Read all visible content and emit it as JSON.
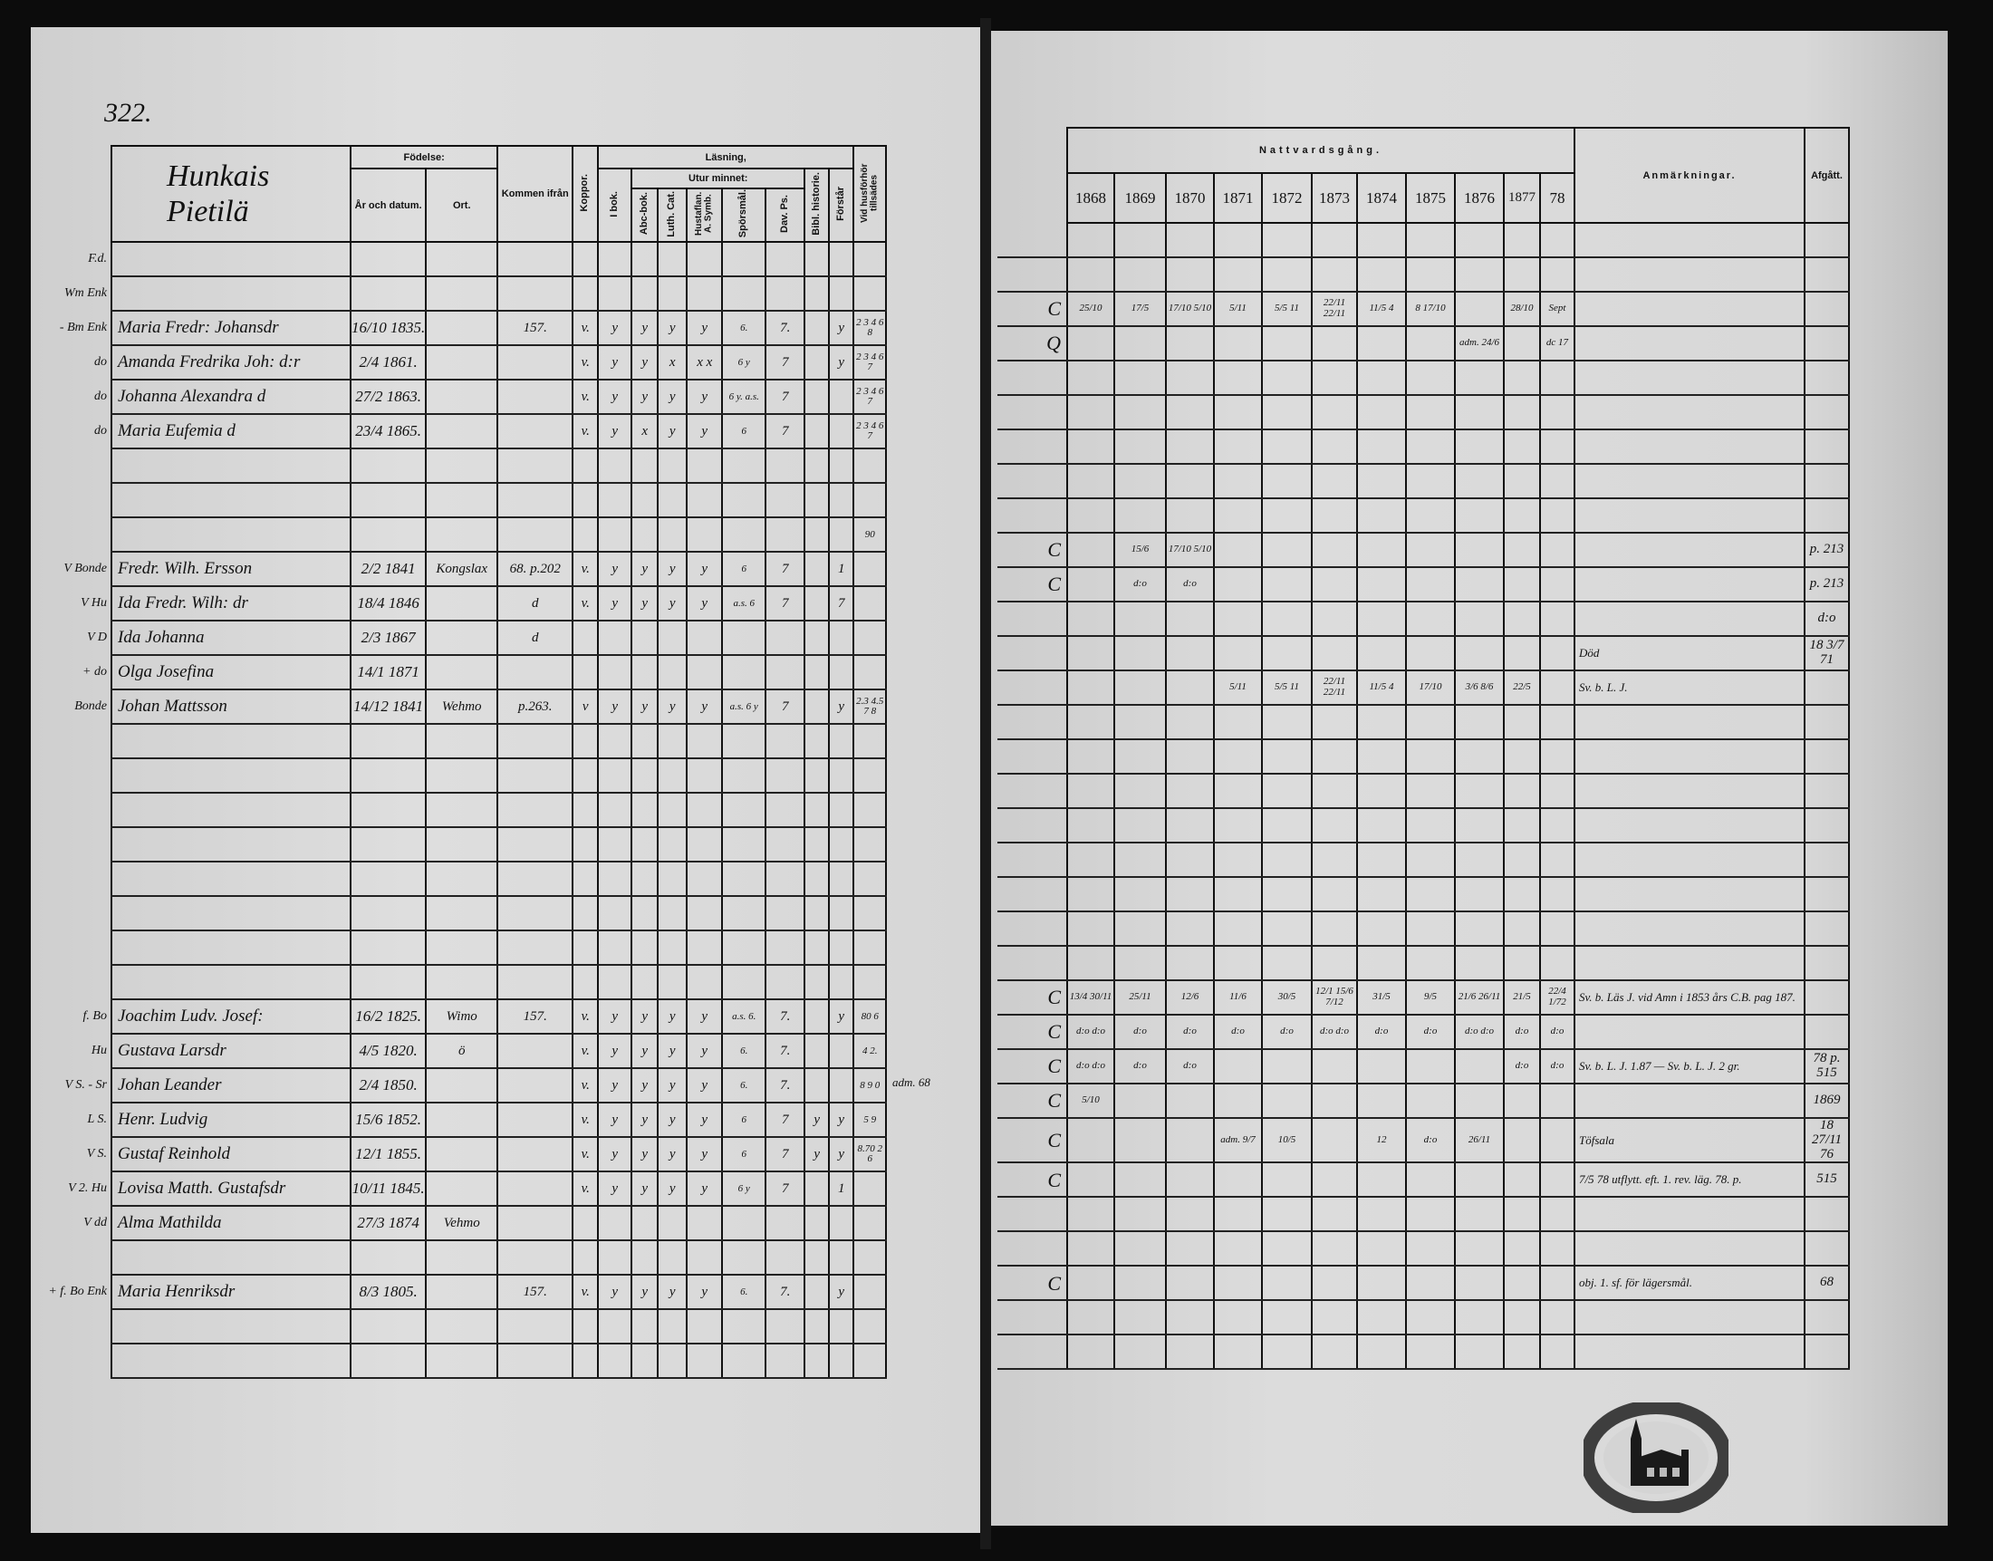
{
  "left_page": {
    "page_number": "322.",
    "village_title": [
      "Hunkais",
      "Pietilä"
    ],
    "headers": {
      "birth": "Födelse:",
      "year_date": "År och datum.",
      "place": "Ort.",
      "came_from": "Kommen ifrån",
      "smallpox": "Koppor.",
      "reading": "Läsning,",
      "in_book": "I bok.",
      "by_heart": "Utur minnet:",
      "abc_book": "Abc-bok.",
      "luth_cat": "Luth. Cat.",
      "hustaflan": "Hustaflan. A. Symb.",
      "questions": "Spörsmål.",
      "dav_ps": "Dav. Ps.",
      "bibl_history": "Bibl. historie.",
      "understands": "Förstår",
      "communion_exam": "Vid husförhör tillsädes"
    },
    "rows": [
      {
        "prefix": "F.d."
      },
      {
        "prefix": "Wm Enk"
      },
      {
        "prefix": "- Bm Enk",
        "name": "Maria Fredr: Johansdr",
        "date": "16/10 1835.",
        "place": "",
        "from": "157.",
        "koppor": "v.",
        "ibok": "y",
        "abc": "y",
        "luth": "y",
        "hust": "y",
        "spors": "6.",
        "dav": "7.",
        "bibl": "",
        "forst": "y",
        "vid": "2 3 4 6 8"
      },
      {
        "prefix": "do",
        "name": "Amanda Fredrika Joh: d:r",
        "date": "2/4 1861.",
        "koppor": "v.",
        "ibok": "y",
        "abc": "y",
        "luth": "x",
        "hust": "x x",
        "spors": "6 y",
        "dav": "7",
        "forst": "y",
        "vid": "2 3 4 6 7"
      },
      {
        "prefix": "do",
        "name": "Johanna Alexandra d",
        "date": "27/2 1863.",
        "koppor": "v.",
        "ibok": "y",
        "abc": "y",
        "luth": "y",
        "hust": "y",
        "spors": "6 y. a.s.",
        "dav": "7",
        "vid": "2 3 4 6 7"
      },
      {
        "prefix": "do",
        "name": "Maria Eufemia d",
        "date": "23/4 1865.",
        "koppor": "v.",
        "ibok": "y",
        "abc": "x",
        "luth": "y",
        "hust": "y",
        "spors": "6",
        "dav": "7",
        "vid": "2 3 4 6 7"
      },
      {},
      {},
      {
        "vid": "90"
      },
      {
        "prefix": "V Bonde",
        "name": "Fredr. Wilh. Ersson",
        "date": "2/2 1841",
        "place": "Kongslax",
        "from": "68. p.202",
        "koppor": "v.",
        "ibok": "y",
        "abc": "y",
        "luth": "y",
        "hust": "y",
        "spors": "6",
        "dav": "7",
        "forst": "1"
      },
      {
        "prefix": "V Hu",
        "name": "Ida Fredr. Wilh: dr",
        "date": "18/4 1846",
        "from": "d",
        "koppor": "v.",
        "ibok": "y",
        "abc": "y",
        "luth": "y",
        "hust": "y",
        "spors": "a.s. 6",
        "dav": "7",
        "forst": "7"
      },
      {
        "prefix": "V D",
        "name": "Ida Johanna",
        "date": "2/3 1867",
        "from": "d"
      },
      {
        "prefix": "+ do",
        "name": "Olga Josefina",
        "date": "14/1 1871"
      },
      {
        "prefix": "Bonde",
        "name": "Johan Mattsson",
        "date": "14/12 1841",
        "place": "Wehmo",
        "from": "p.263.",
        "koppor": "v",
        "ibok": "y",
        "abc": "y",
        "luth": "y",
        "hust": "y",
        "spors": "a.s. 6 y",
        "dav": "7",
        "forst": "y",
        "vid": "2.3 4.5 7 8"
      },
      {},
      {},
      {},
      {},
      {},
      {},
      {},
      {},
      {
        "prefix": "f. Bo",
        "name": "Joachim Ludv. Josef:",
        "date": "16/2 1825.",
        "place": "Wimo",
        "from": "157.",
        "koppor": "v.",
        "ibok": "y",
        "abc": "y",
        "luth": "y",
        "hust": "y",
        "spors": "a.s. 6.",
        "dav": "7.",
        "forst": "y",
        "vid": "80 6"
      },
      {
        "prefix": "Hu",
        "name": "Gustava Larsdr",
        "date": "4/5 1820.",
        "place": "ö",
        "koppor": "v.",
        "ibok": "y",
        "abc": "y",
        "luth": "y",
        "hust": "y",
        "spors": "6.",
        "dav": "7.",
        "vid": "4 2."
      },
      {
        "prefix": "V S. - Sr",
        "name": "Johan Leander",
        "date": "2/4 1850.",
        "koppor": "v.",
        "ibok": "y",
        "abc": "y",
        "luth": "y",
        "hust": "y",
        "spors": "6.",
        "dav": "7.",
        "vid": "8 9 0",
        "note": "adm. 68"
      },
      {
        "prefix": "L S.",
        "name": "Henr. Ludvig",
        "date": "15/6 1852.",
        "koppor": "v.",
        "ibok": "y",
        "abc": "y",
        "luth": "y",
        "hust": "y",
        "spors": "6",
        "dav": "7",
        "bibl": "y",
        "forst": "y",
        "vid": "5 9"
      },
      {
        "prefix": "V S.",
        "name": "Gustaf Reinhold",
        "date": "12/1 1855.",
        "koppor": "v.",
        "ibok": "y",
        "abc": "y",
        "luth": "y",
        "hust": "y",
        "spors": "6",
        "dav": "7",
        "bibl": "y",
        "forst": "y",
        "vid": "8.70 2 6"
      },
      {
        "prefix": "V 2. Hu",
        "name": "Lovisa Matth. Gustafsdr",
        "date": "10/11 1845.",
        "koppor": "v.",
        "ibok": "y",
        "abc": "y",
        "luth": "y",
        "hust": "y",
        "spors": "6 y",
        "dav": "7",
        "forst": "1"
      },
      {
        "prefix": "V dd",
        "name": "Alma Mathilda",
        "date": "27/3 1874",
        "place": "Vehmo"
      },
      {},
      {
        "prefix": "+ f. Bo Enk",
        "name": "Maria Henriksdr",
        "date": "8/3 1805.",
        "from": "157.",
        "koppor": "v.",
        "ibok": "y",
        "abc": "y",
        "luth": "y",
        "hust": "y",
        "spors": "6.",
        "dav": "7.",
        "forst": "y"
      },
      {},
      {}
    ]
  },
  "right_page": {
    "headers": {
      "communion": "Nattvardsgång.",
      "years": [
        "1868",
        "1869",
        "1870",
        "1871",
        "1872",
        "1873",
        "1874",
        "1875",
        "1876",
        "1877",
        "78"
      ],
      "remarks": "Anmärkningar.",
      "departed": "Afgått."
    },
    "rows": [
      {},
      {},
      {
        "mark": "C",
        "years": [
          "25/10",
          "17/5",
          "17/10 5/10",
          "5/11",
          "5/5 11",
          "22/11 22/11",
          "11/5 4",
          "8 17/10",
          "",
          "28/10",
          "Sept"
        ]
      },
      {
        "mark": "Q",
        "years": [
          "",
          "",
          "",
          "",
          "",
          "",
          "",
          "",
          "adm. 24/6",
          "",
          "dc 17"
        ]
      },
      {},
      {},
      {},
      {},
      {},
      {
        "mark": "C",
        "years": [
          "",
          "15/6",
          "17/10 5/10",
          "",
          "",
          "",
          "",
          "",
          "",
          "",
          ""
        ],
        "afg": "p. 213"
      },
      {
        "mark": "C",
        "years": [
          "",
          "d:o",
          "d:o",
          "",
          "",
          "",
          "",
          "",
          "",
          "",
          ""
        ],
        "afg": "p. 213"
      },
      {
        "afg": "d:o"
      },
      {
        "anm": "Död",
        "afg": "18 3/7 71"
      },
      {
        "years": [
          "",
          "",
          "",
          "5/11",
          "5/5 11",
          "22/11 22/11",
          "11/5 4",
          "17/10",
          "3/6 8/6",
          "22/5",
          ""
        ],
        "anm": "Sv. b. L. J."
      },
      {},
      {},
      {},
      {},
      {},
      {},
      {},
      {},
      {
        "mark": "C",
        "years": [
          "13/4 30/11",
          "25/11",
          "12/6",
          "11/6",
          "30/5",
          "12/1 15/6 7/12",
          "31/5",
          "9/5",
          "21/6 26/11",
          "21/5",
          "22/4 1/72"
        ],
        "anm": "Sv. b. Läs J. vid Amn i 1853 års C.B. pag 187."
      },
      {
        "mark": "C",
        "years": [
          "d:o d:o",
          "d:o",
          "d:o",
          "d:o",
          "d:o",
          "d:o d:o",
          "d:o",
          "d:o",
          "d:o d:o",
          "d:o",
          "d:o"
        ]
      },
      {
        "mark": "C",
        "years": [
          "d:o d:o",
          "d:o",
          "d:o",
          "",
          "",
          "",
          "",
          "",
          "",
          "d:o",
          "d:o"
        ],
        "anm": "Sv. b. L. J. 1.87 — Sv. b. L. J. 2 gr.",
        "afg": "78 p. 515"
      },
      {
        "mark": "C",
        "years": [
          "5/10",
          "",
          "",
          "",
          "",
          "",
          "",
          "",
          "",
          "",
          ""
        ],
        "afg": "1869"
      },
      {
        "mark": "C",
        "years": [
          "",
          "",
          "",
          "adm. 9/7",
          "10/5",
          "",
          "12",
          "d:o",
          "26/11",
          "",
          ""
        ],
        "anm": "Töfsala",
        "afg": "18 27/11 76"
      },
      {
        "mark": "C",
        "anm": "7/5 78 utflytt. eft. 1. rev. läg. 78. p.",
        "afg": "515"
      },
      {},
      {},
      {
        "mark": "C",
        "anm": "obj. 1. sf. för lägersmål.",
        "afg": "68"
      },
      {},
      {}
    ]
  },
  "stamp": {
    "icon": "church-archive-stamp"
  },
  "colors": {
    "paper": "#d9d9d9",
    "ink": "#111111",
    "background": "#0c0c0c"
  }
}
